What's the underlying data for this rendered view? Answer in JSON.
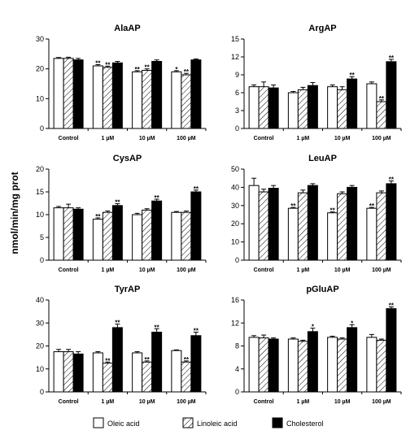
{
  "y_axis_label": "nmol/min/mg prot",
  "legend": [
    {
      "label": "Oleic acid",
      "fill": "#ffffff",
      "pattern": "none"
    },
    {
      "label": "Linoleic acid",
      "fill": "#ffffff",
      "pattern": "hatch"
    },
    {
      "label": "Cholesterol",
      "fill": "#000000",
      "pattern": "none"
    }
  ],
  "chart_data": [
    {
      "type": "bar",
      "title": "AlaAP",
      "categories": [
        "Control",
        "1 µM",
        "10 µM",
        "100 µM"
      ],
      "yticks": [
        0,
        10,
        20,
        30
      ],
      "ylim": [
        0,
        30
      ],
      "series": [
        {
          "name": "Oleic acid",
          "values": [
            23.5,
            21,
            19,
            19
          ],
          "errors": [
            0.3,
            0.4,
            0.4,
            0.4
          ],
          "marks": [
            "",
            "**",
            "**",
            "*"
          ]
        },
        {
          "name": "Linoleic acid",
          "values": [
            23.5,
            20.5,
            19.5,
            18
          ],
          "errors": [
            0.4,
            0.4,
            0.5,
            0.5
          ],
          "marks": [
            "",
            "**",
            "**",
            "**"
          ]
        },
        {
          "name": "Cholesterol",
          "values": [
            23,
            22,
            22.5,
            23
          ],
          "errors": [
            0.5,
            0.5,
            0.5,
            0.3
          ],
          "marks": [
            "",
            "",
            "",
            ""
          ]
        }
      ]
    },
    {
      "type": "bar",
      "title": "ArgAP",
      "categories": [
        "Control",
        "1 µM",
        "10 µM",
        "100 µM"
      ],
      "yticks": [
        0,
        3,
        6,
        9,
        12,
        15
      ],
      "ylim": [
        0,
        15
      ],
      "series": [
        {
          "name": "Oleic acid",
          "values": [
            7,
            6,
            7,
            7.5
          ],
          "errors": [
            0.3,
            0.2,
            0.3,
            0.3
          ],
          "marks": [
            "",
            "",
            "",
            ""
          ]
        },
        {
          "name": "Linoleic acid",
          "values": [
            7,
            6.5,
            6.5,
            4.5
          ],
          "errors": [
            0.8,
            0.4,
            0.5,
            0.3
          ],
          "marks": [
            "",
            "",
            "",
            "**"
          ]
        },
        {
          "name": "Cholesterol",
          "values": [
            6.8,
            7.2,
            8.3,
            11.2
          ],
          "errors": [
            0.5,
            0.5,
            0.4,
            0.4
          ],
          "marks": [
            "",
            "",
            "**",
            "**"
          ]
        }
      ]
    },
    {
      "type": "bar",
      "title": "CysAP",
      "categories": [
        "Control",
        "1 µM",
        "10 µM",
        "100 µM"
      ],
      "yticks": [
        0,
        5,
        10,
        15,
        20
      ],
      "ylim": [
        0,
        20
      ],
      "series": [
        {
          "name": "Oleic acid",
          "values": [
            11.5,
            9,
            10,
            10.5
          ],
          "errors": [
            0.3,
            0.3,
            0.3,
            0.2
          ],
          "marks": [
            "",
            "**",
            "",
            ""
          ]
        },
        {
          "name": "Linoleic acid",
          "values": [
            11.5,
            10.5,
            11,
            10.5
          ],
          "errors": [
            0.8,
            0.3,
            0.3,
            0.3
          ],
          "marks": [
            "",
            "",
            "",
            ""
          ]
        },
        {
          "name": "Cholesterol",
          "values": [
            11.2,
            12,
            13,
            15
          ],
          "errors": [
            0.3,
            0.4,
            0.4,
            0.4
          ],
          "marks": [
            "",
            "**",
            "**",
            "**"
          ]
        }
      ]
    },
    {
      "type": "bar",
      "title": "LeuAP",
      "categories": [
        "Control",
        "1 µM",
        "10 µM",
        "100 µM"
      ],
      "yticks": [
        0,
        10,
        20,
        30,
        40,
        50
      ],
      "ylim": [
        0,
        50
      ],
      "series": [
        {
          "name": "Oleic acid",
          "values": [
            41,
            28.5,
            26,
            28.5
          ],
          "errors": [
            4,
            0.5,
            0.5,
            0.5
          ],
          "marks": [
            "",
            "**",
            "**",
            "**"
          ]
        },
        {
          "name": "Linoleic acid",
          "values": [
            37.5,
            37,
            36.5,
            37
          ],
          "errors": [
            1.5,
            1.5,
            1,
            1
          ],
          "marks": [
            "",
            "",
            "",
            ""
          ]
        },
        {
          "name": "Cholesterol",
          "values": [
            39.5,
            41,
            40,
            42
          ],
          "errors": [
            1.5,
            1,
            1,
            1.5
          ],
          "marks": [
            "",
            "",
            "",
            "**"
          ]
        }
      ]
    },
    {
      "type": "bar",
      "title": "TyrAP",
      "categories": [
        "Control",
        "1 µM",
        "10 µM",
        "100 µM"
      ],
      "yticks": [
        0,
        10,
        20,
        30,
        40
      ],
      "ylim": [
        0,
        40
      ],
      "series": [
        {
          "name": "Oleic acid",
          "values": [
            17.5,
            17,
            17,
            18
          ],
          "errors": [
            1,
            0.5,
            0.5,
            0.3
          ],
          "marks": [
            "",
            "",
            "",
            ""
          ]
        },
        {
          "name": "Linoleic acid",
          "values": [
            17.5,
            12.5,
            13,
            13
          ],
          "errors": [
            1,
            0.5,
            0.5,
            0.5
          ],
          "marks": [
            "",
            "**",
            "**",
            "**"
          ]
        },
        {
          "name": "Cholesterol",
          "values": [
            16.5,
            28,
            26,
            24.5
          ],
          "errors": [
            1,
            1.5,
            1.5,
            1.5
          ],
          "marks": [
            "",
            "**",
            "**",
            "**"
          ]
        }
      ]
    },
    {
      "type": "bar",
      "title": "pGluAP",
      "categories": [
        "Control",
        "1 µM",
        "10 µM",
        "100 µM"
      ],
      "yticks": [
        0,
        4,
        8,
        12,
        16
      ],
      "ylim": [
        0,
        16
      ],
      "series": [
        {
          "name": "Oleic acid",
          "values": [
            9.5,
            9.2,
            9.5,
            9.5
          ],
          "errors": [
            0.3,
            0.2,
            0.2,
            0.5
          ],
          "marks": [
            "",
            "",
            "",
            ""
          ]
        },
        {
          "name": "Linoleic acid",
          "values": [
            9.4,
            8.8,
            9.2,
            9
          ],
          "errors": [
            0.5,
            0.2,
            0.2,
            0.2
          ],
          "marks": [
            "",
            "",
            "",
            ""
          ]
        },
        {
          "name": "Cholesterol",
          "values": [
            9.2,
            10.5,
            11.2,
            14.5
          ],
          "errors": [
            0.2,
            0.6,
            0.5,
            0.3
          ],
          "marks": [
            "",
            "*",
            "*",
            "**"
          ]
        }
      ]
    }
  ]
}
